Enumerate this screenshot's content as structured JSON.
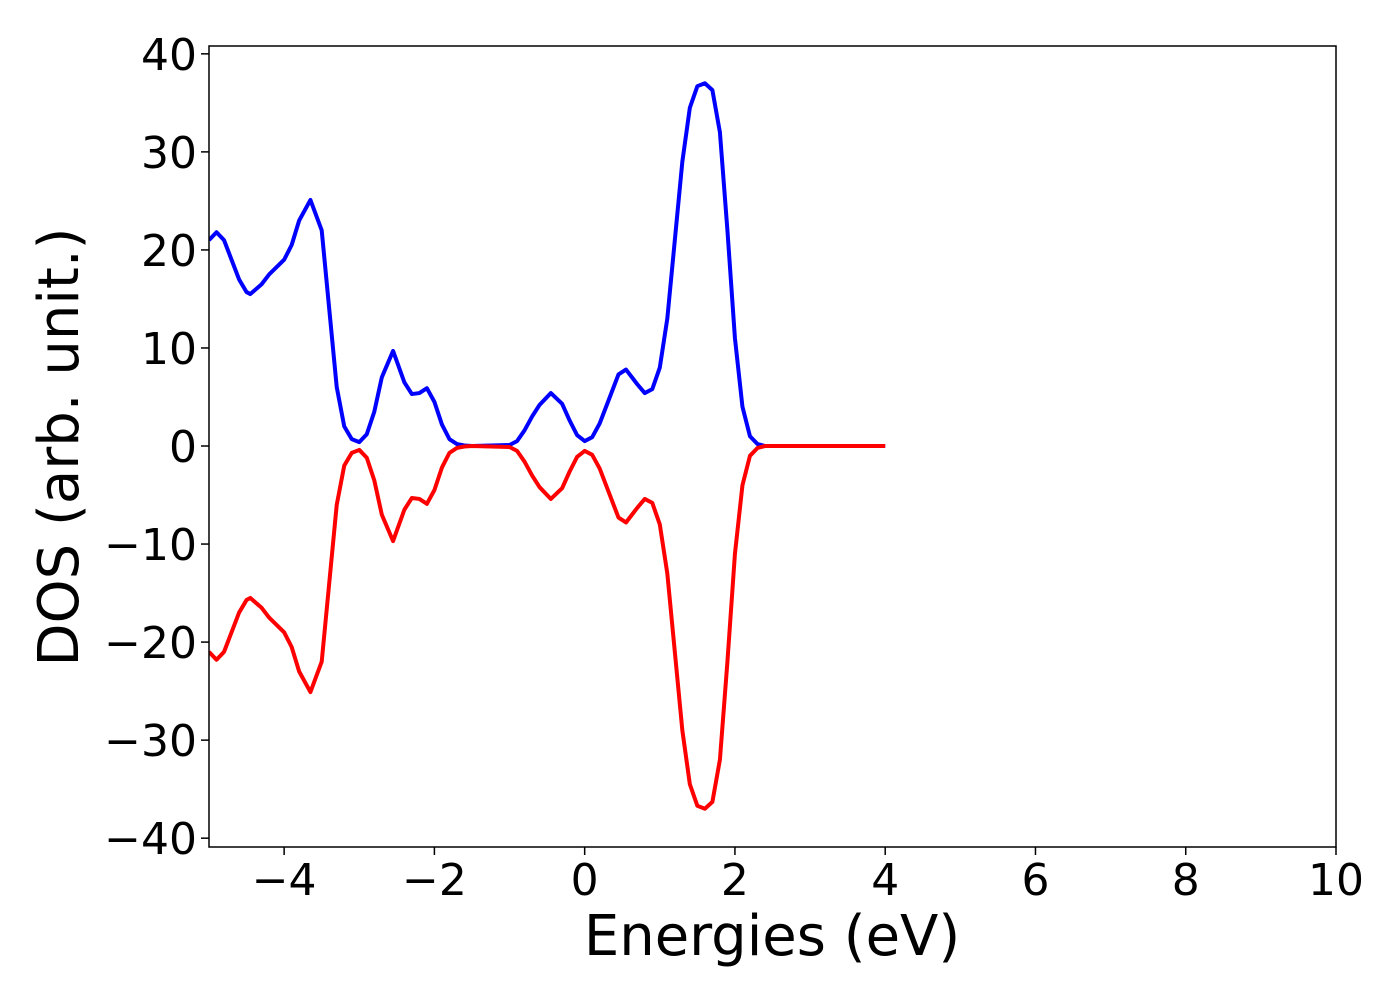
{
  "chart_data": {
    "type": "line",
    "xlabel": "Energies (eV)",
    "ylabel": "DOS (arb. unit.)",
    "x": [
      -5,
      -4.9,
      -4.8,
      -4.7,
      -4.6,
      -4.5,
      -4.45,
      -4.3,
      -4.2,
      -4.0,
      -3.9,
      -3.8,
      -3.65,
      -3.5,
      -3.4,
      -3.3,
      -3.2,
      -3.1,
      -3.0,
      -2.9,
      -2.8,
      -2.7,
      -2.55,
      -2.4,
      -2.3,
      -2.2,
      -2.1,
      -2.0,
      -1.9,
      -1.8,
      -1.7,
      -1.6,
      -1.5,
      -1.0,
      -0.9,
      -0.8,
      -0.7,
      -0.6,
      -0.45,
      -0.3,
      -0.2,
      -0.1,
      0,
      0.1,
      0.2,
      0.3,
      0.45,
      0.55,
      0.7,
      0.8,
      0.9,
      1.0,
      1.1,
      1.2,
      1.3,
      1.4,
      1.5,
      1.6,
      1.7,
      1.8,
      1.9,
      2.0,
      2.1,
      2.2,
      2.3,
      2.4,
      4.0
    ],
    "series": [
      {
        "color": "#0000ff",
        "values": [
          21,
          21.8,
          21,
          19,
          17,
          15.7,
          15.5,
          16.5,
          17.5,
          19,
          20.5,
          23,
          25.1,
          22,
          14,
          6,
          2,
          0.7,
          0.4,
          1.2,
          3.5,
          7,
          9.7,
          6.5,
          5.3,
          5.4,
          5.9,
          4.5,
          2.2,
          0.7,
          0.2,
          0.05,
          0,
          0.1,
          0.5,
          1.6,
          3,
          4.2,
          5.4,
          4.3,
          2.6,
          1.1,
          0.5,
          0.9,
          2.3,
          4.3,
          7.3,
          7.8,
          6.3,
          5.4,
          5.8,
          8,
          13,
          21,
          29,
          34.5,
          36.7,
          37,
          36.3,
          32,
          22,
          11,
          4,
          1,
          0.2,
          0,
          0
        ]
      },
      {
        "color": "#ff0000",
        "values": [
          -21,
          -21.8,
          -21,
          -19,
          -17,
          -15.7,
          -15.5,
          -16.5,
          -17.5,
          -19,
          -20.5,
          -23,
          -25.1,
          -22,
          -14,
          -6,
          -2,
          -0.7,
          -0.4,
          -1.2,
          -3.5,
          -7,
          -9.7,
          -6.5,
          -5.3,
          -5.4,
          -5.9,
          -4.5,
          -2.2,
          -0.7,
          -0.2,
          -0.05,
          0,
          -0.1,
          -0.5,
          -1.6,
          -3,
          -4.2,
          -5.4,
          -4.3,
          -2.6,
          -1.1,
          -0.5,
          -0.9,
          -2.3,
          -4.3,
          -7.3,
          -7.8,
          -6.3,
          -5.4,
          -5.8,
          -8,
          -13,
          -21,
          -29,
          -34.5,
          -36.7,
          -37,
          -36.3,
          -32,
          -22,
          -11,
          -4,
          -1,
          -0.2,
          0,
          0
        ]
      }
    ],
    "xlim": [
      -5,
      10
    ],
    "xticks": [
      {
        "value": -4,
        "label": "−4"
      },
      {
        "value": -2,
        "label": "−2"
      },
      0,
      2,
      4,
      6,
      8,
      10
    ],
    "ylim": [
      -40.9,
      40.8
    ],
    "yticks": [
      {
        "value": -40,
        "label": "−40"
      },
      {
        "value": -30,
        "label": "−30"
      },
      {
        "value": -20,
        "label": "−20"
      },
      {
        "value": -10,
        "label": "−10"
      },
      0,
      10,
      20,
      30,
      40
    ]
  }
}
